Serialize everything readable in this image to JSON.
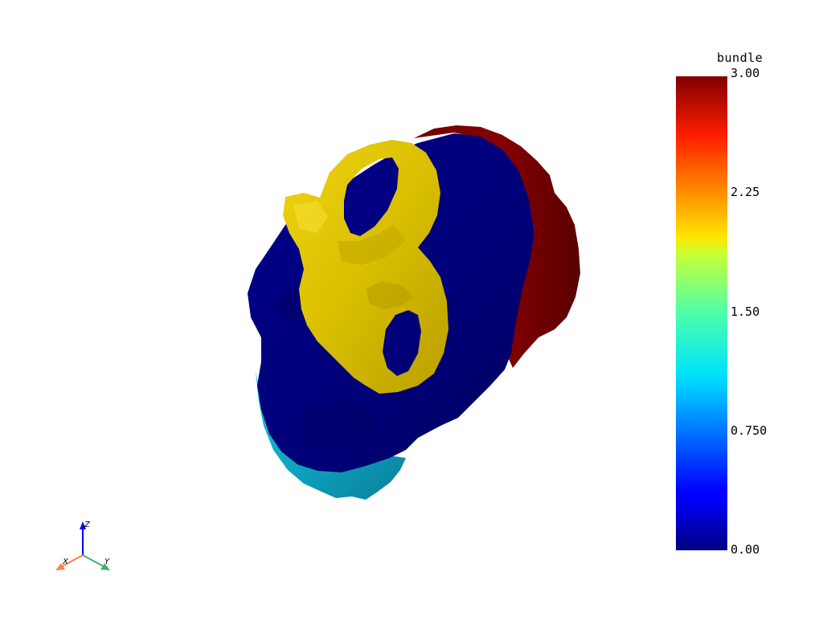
{
  "scalar_bar": {
    "title": "bundle",
    "range": [
      0.0,
      3.0
    ],
    "colormap": "jet",
    "ticks": [
      "3.00",
      "2.25",
      "1.50",
      "0.750",
      "0.00"
    ]
  },
  "axes": {
    "x_label": "X",
    "y_label": "Y",
    "z_label": "Z"
  },
  "mesh": {
    "regions": [
      {
        "bundle": 0,
        "color": "#00007f"
      },
      {
        "bundle": 1,
        "color": "#00c8e0"
      },
      {
        "bundle": 2,
        "color": "#e6cf05"
      },
      {
        "bundle": 3,
        "color": "#7f0000"
      }
    ]
  },
  "colors": {
    "bundle_0": "#00007f",
    "bundle_1": "#00c8e0",
    "bundle_2": "#e6cf05",
    "bundle_3": "#7f0000",
    "axis_x": "#ff7f50",
    "axis_y": "#3cb371",
    "axis_z": "#0000ff"
  }
}
